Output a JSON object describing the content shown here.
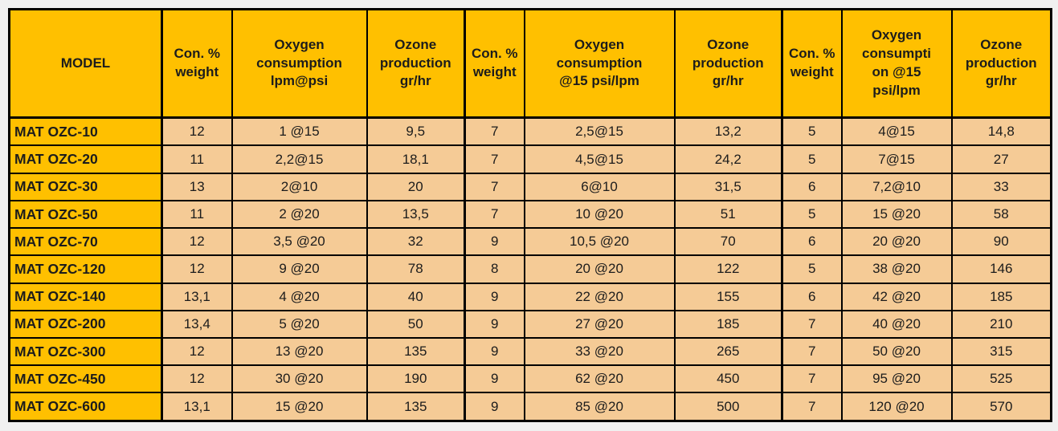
{
  "page": {
    "background": "#F0F0F0"
  },
  "table_style": {
    "header_bg": "#FFC000",
    "model_bg": "#FFC000",
    "cell_bg": "#F5CB96",
    "border_color": "#000000",
    "text_color": "#1C1C1C"
  },
  "chart_data": {
    "type": "table",
    "columns": [
      "MODEL",
      "Con. %\nweight",
      "Oxygen\nconsumption\nlpm@psi",
      "Ozone\nproduction\ngr/hr",
      "Con. %\nweight",
      "Oxygen\nconsumption\n@15 psi/lpm",
      "Ozone\nproduction\ngr/hr",
      "Con. %\nweight",
      "Oxygen\nconsumpti\non @15\npsi/lpm",
      "Ozone\nproduction\ngr/hr"
    ],
    "rows": [
      [
        "MAT OZC-10",
        "12",
        "1 @15",
        "9,5",
        "7",
        "2,5@15",
        "13,2",
        "5",
        "4@15",
        "14,8"
      ],
      [
        "MAT OZC-20",
        "11",
        "2,2@15",
        "18,1",
        "7",
        "4,5@15",
        "24,2",
        "5",
        "7@15",
        "27"
      ],
      [
        "MAT OZC-30",
        "13",
        "2@10",
        "20",
        "7",
        "6@10",
        "31,5",
        "6",
        "7,2@10",
        "33"
      ],
      [
        "MAT OZC-50",
        "11",
        "2 @20",
        "13,5",
        "7",
        "10 @20",
        "51",
        "5",
        "15 @20",
        "58"
      ],
      [
        "MAT OZC-70",
        "12",
        "3,5 @20",
        "32",
        "9",
        "10,5 @20",
        "70",
        "6",
        "20 @20",
        "90"
      ],
      [
        "MAT OZC-120",
        "12",
        "9 @20",
        "78",
        "8",
        "20 @20",
        "122",
        "5",
        "38 @20",
        "146"
      ],
      [
        "MAT OZC-140",
        "13,1",
        "4 @20",
        "40",
        "9",
        "22 @20",
        "155",
        "6",
        "42 @20",
        "185"
      ],
      [
        "MAT OZC-200",
        "13,4",
        "5 @20",
        "50",
        "9",
        "27 @20",
        "185",
        "7",
        "40 @20",
        "210"
      ],
      [
        "MAT OZC-300",
        "12",
        "13 @20",
        "135",
        "9",
        "33 @20",
        "265",
        "7",
        "50 @20",
        "315"
      ],
      [
        "MAT OZC-450",
        "12",
        "30 @20",
        "190",
        "9",
        "62 @20",
        "450",
        "7",
        "95 @20",
        "525"
      ],
      [
        "MAT OZC-600",
        "13,1",
        "15 @20",
        "135",
        "9",
        "85 @20",
        "500",
        "7",
        "120 @20",
        "570"
      ]
    ]
  }
}
